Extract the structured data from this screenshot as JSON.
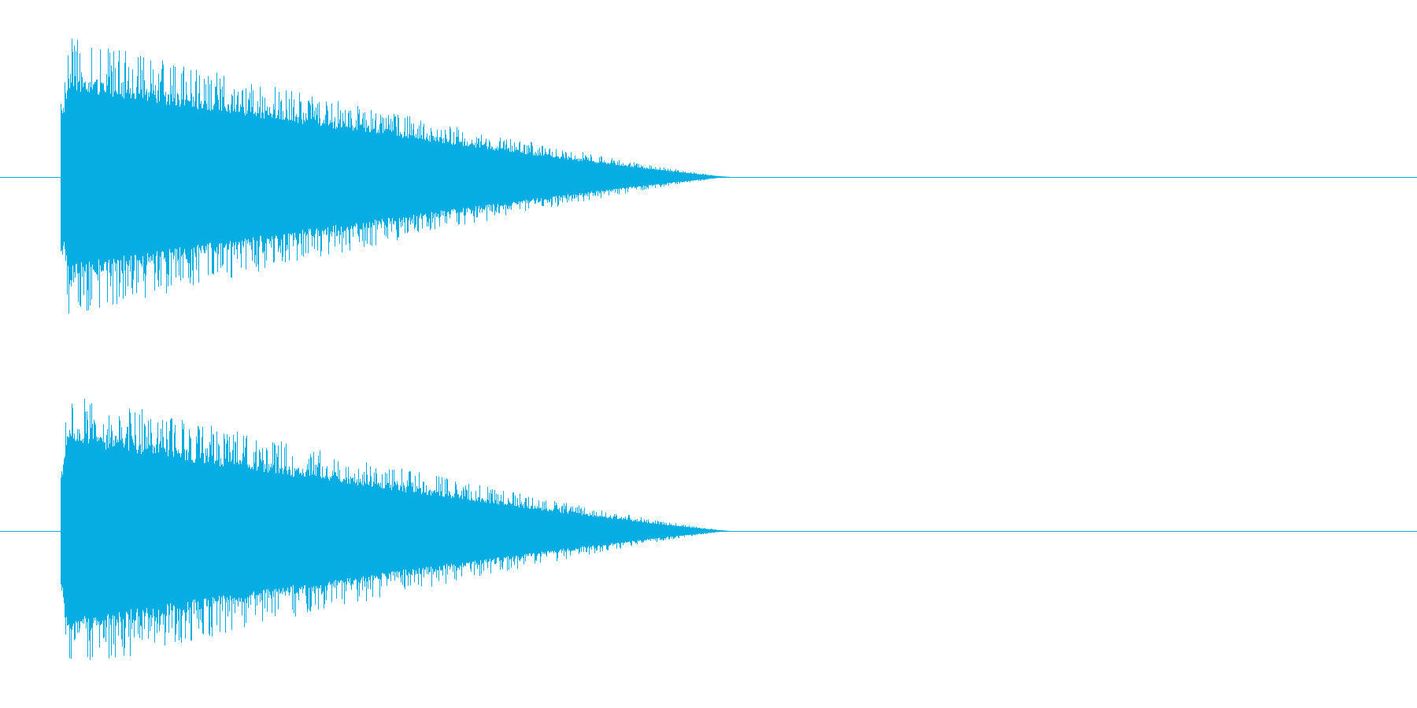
{
  "waveform": {
    "color": "#05ADE3",
    "background": "#FFFFFF",
    "channel_count": 2,
    "channels": [
      {
        "channel": "left"
      },
      {
        "channel": "right"
      }
    ],
    "envelope": {
      "shape": "attack then decay to silence",
      "sound_start_fraction": 0.043,
      "sound_end_fraction": 0.515,
      "peak_amplitude_fraction": 0.95
    }
  }
}
